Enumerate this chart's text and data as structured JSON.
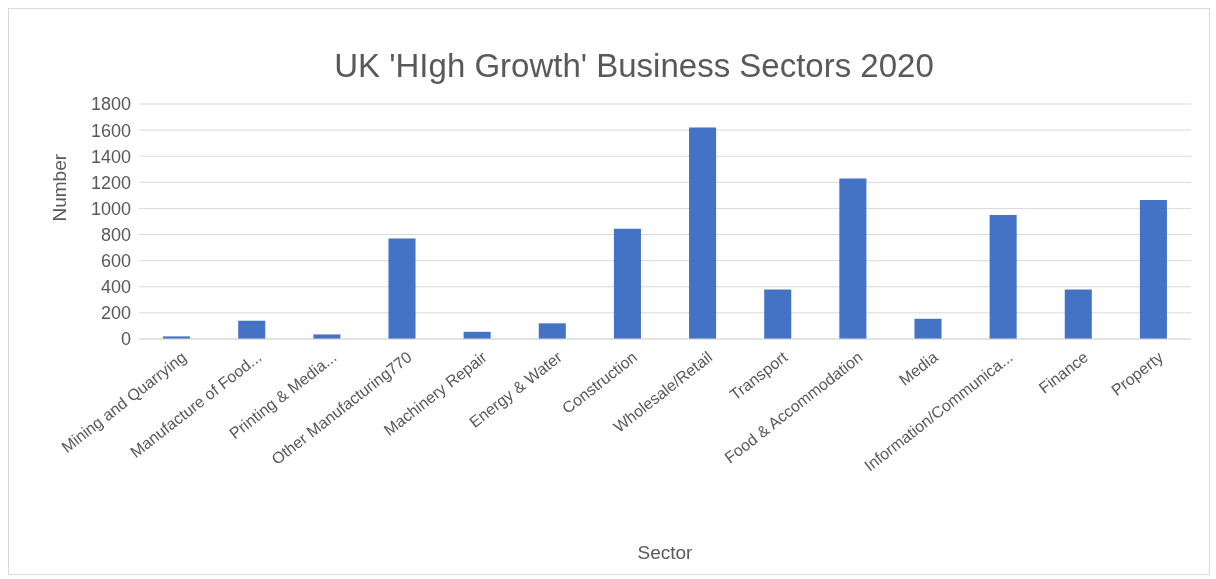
{
  "chart_data": {
    "type": "bar",
    "title": "UK 'HIgh Growth' Business Sectors 2020",
    "xlabel": "Sector",
    "ylabel": "Number",
    "categories": [
      "Mining and Quarrying",
      "Manufacture of Food...",
      "Printing & Media...",
      "Other Manufacturing770",
      "Machinery Repair",
      "Energy & Water",
      "Construction",
      "Wholesale/Retail",
      "Transport",
      "Food & Accommodation",
      "Media",
      "Information/Communica...",
      "Finance",
      "Property"
    ],
    "values": [
      20,
      140,
      35,
      770,
      55,
      120,
      845,
      1620,
      380,
      1230,
      155,
      950,
      380,
      1065
    ],
    "color": "#4472c4",
    "ylim": [
      0,
      1800
    ],
    "yticks": [
      0,
      200,
      400,
      600,
      800,
      1000,
      1200,
      1400,
      1600,
      1800
    ],
    "grid": "y"
  }
}
